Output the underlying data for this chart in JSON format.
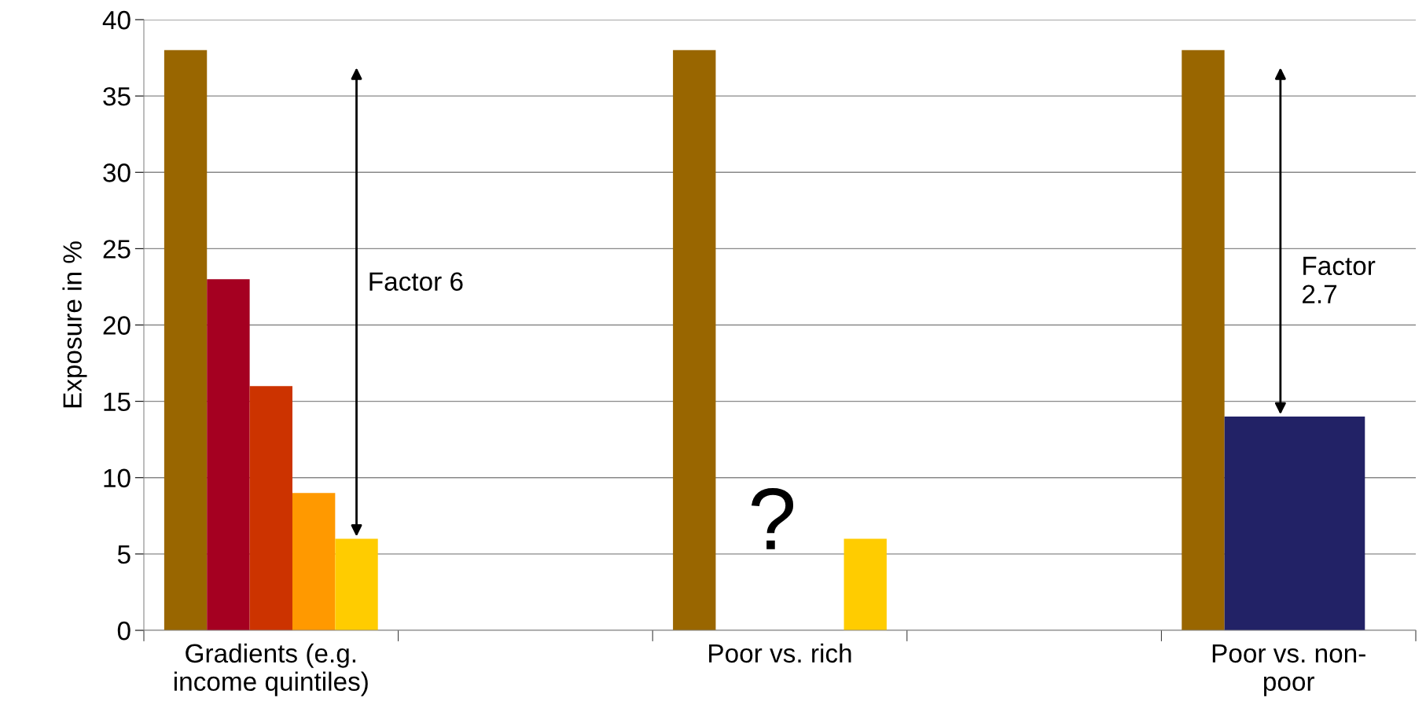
{
  "chart_data": {
    "type": "bar",
    "ylabel": "Exposure in %",
    "categories": [
      "Gradients (e.g.\nincome quintiles)",
      null,
      "Poor vs. rich",
      null,
      "Poor vs. non-\npoor"
    ],
    "series": [
      {
        "color": "#996600",
        "values": [
          38,
          null,
          38,
          null,
          38
        ]
      },
      {
        "color": "#a50021",
        "values": [
          23,
          null,
          null,
          null,
          null
        ]
      },
      {
        "color": "#cc3300",
        "values": [
          16,
          null,
          null,
          null,
          null
        ]
      },
      {
        "color": "#ff9900",
        "values": [
          9,
          null,
          null,
          null,
          null
        ]
      },
      {
        "color": "#ffcc00",
        "values": [
          6,
          null,
          6,
          null,
          null
        ]
      },
      {
        "color": "#222266",
        "values": [
          null,
          null,
          null,
          null,
          14
        ]
      }
    ],
    "ylim": [
      0,
      40
    ],
    "yticks": [
      0,
      5,
      10,
      15,
      20,
      25,
      30,
      35,
      40
    ],
    "grid": "y",
    "legend": false,
    "annotations": [
      "Factor 6",
      "?",
      "Factor\n2.7"
    ]
  }
}
